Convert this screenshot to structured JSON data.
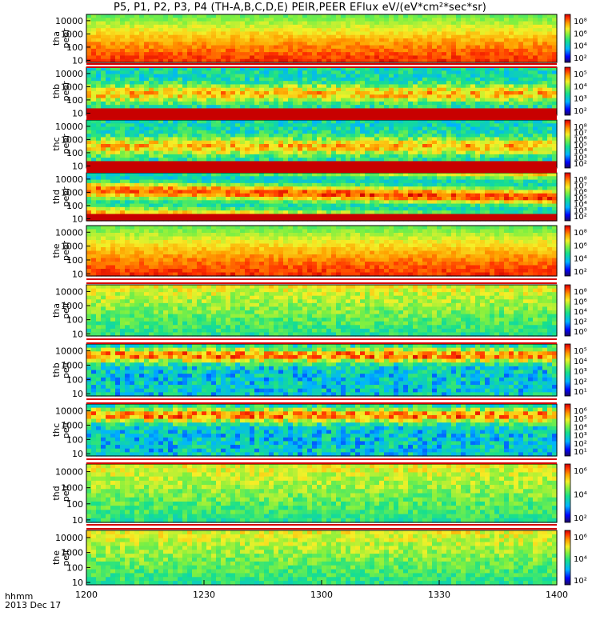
{
  "title": "P5, P1, P2, P3, P4 (TH-A,B,C,D,E) PEIR,PEER EFlux eV/(eV*cm²*sec*sr)",
  "time_axis": {
    "row_label": "hhmm",
    "date_label": "2013 Dec 17",
    "tick_labels": [
      "1200",
      "1230",
      "1300",
      "1330",
      "1400"
    ]
  },
  "chart_data": [
    {
      "type": "heatmap",
      "panel": "tha-peer",
      "ylabel_top": "tha",
      "ylabel_bottom": "peer",
      "x_range": [
        "12:00",
        "14:00"
      ],
      "ylim": [
        7,
        30000
      ],
      "y_scale": "log",
      "y_tick_labels": [
        "10000",
        "1000",
        "100",
        "10"
      ],
      "cbar_labels": [
        "10⁸",
        "10⁶",
        "10⁴",
        "10²"
      ],
      "style": "peer",
      "fill_band": null
    },
    {
      "type": "heatmap",
      "panel": "thb-peer",
      "ylabel_top": "thb",
      "ylabel_bottom": "peer",
      "x_range": [
        "12:00",
        "14:00"
      ],
      "ylim": [
        7,
        30000
      ],
      "y_scale": "log",
      "y_tick_labels": [
        "10000",
        "1000",
        "100",
        "10"
      ],
      "cbar_labels": [
        "10⁵",
        "10⁴",
        "10³",
        "10²"
      ],
      "style": "bandmix",
      "fill_band": "low"
    },
    {
      "type": "heatmap",
      "panel": "thc-peer",
      "ylabel_top": "thc",
      "ylabel_bottom": "peer",
      "x_range": [
        "12:00",
        "14:00"
      ],
      "ylim": [
        7,
        30000
      ],
      "y_scale": "log",
      "y_tick_labels": [
        "10000",
        "1000",
        "100",
        "10"
      ],
      "cbar_labels": [
        "10⁸",
        "10⁷",
        "10⁶",
        "10⁵",
        "10⁴",
        "10³",
        "10²"
      ],
      "style": "bandmix",
      "fill_band": "low"
    },
    {
      "type": "heatmap",
      "panel": "thd-peer",
      "ylabel_top": "thd",
      "ylabel_bottom": "peer",
      "x_range": [
        "12:00",
        "14:00"
      ],
      "ylim": [
        7,
        30000
      ],
      "y_scale": "log",
      "y_tick_labels": [
        "10000",
        "1000",
        "100",
        "10"
      ],
      "cbar_labels": [
        "10⁸",
        "10⁷",
        "10⁶",
        "10⁵",
        "10⁴",
        "10³",
        "10²"
      ],
      "style": "peer2",
      "fill_band": "low"
    },
    {
      "type": "heatmap",
      "panel": "the-peer",
      "ylabel_top": "the",
      "ylabel_bottom": "peer",
      "x_range": [
        "12:00",
        "14:00"
      ],
      "ylim": [
        7,
        30000
      ],
      "y_scale": "log",
      "y_tick_labels": [
        "10000",
        "1000",
        "100",
        "10"
      ],
      "cbar_labels": [
        "10⁸",
        "10⁶",
        "10⁴",
        "10²"
      ],
      "style": "peer",
      "fill_band": null
    },
    {
      "type": "heatmap",
      "panel": "tha-peir",
      "ylabel_top": "tha",
      "ylabel_bottom": "peir",
      "x_range": [
        "12:00",
        "14:00"
      ],
      "ylim": [
        7,
        30000
      ],
      "y_scale": "log",
      "y_tick_labels": [
        "10000",
        "1000",
        "100",
        "10"
      ],
      "cbar_labels": [
        "10⁸",
        "10⁶",
        "10⁴",
        "10²",
        "10⁰"
      ],
      "style": "peir",
      "fill_band": null
    },
    {
      "type": "heatmap",
      "panel": "thb-peir",
      "ylabel_top": "thb",
      "ylabel_bottom": "peir",
      "x_range": [
        "12:00",
        "14:00"
      ],
      "ylim": [
        7,
        30000
      ],
      "y_scale": "log",
      "y_tick_labels": [
        "10000",
        "1000",
        "100",
        "10"
      ],
      "cbar_labels": [
        "10⁵",
        "10⁴",
        "10³",
        "10²",
        "10¹"
      ],
      "style": "peir2",
      "fill_band": null
    },
    {
      "type": "heatmap",
      "panel": "thc-peir",
      "ylabel_top": "thc",
      "ylabel_bottom": "peir",
      "x_range": [
        "12:00",
        "14:00"
      ],
      "ylim": [
        7,
        30000
      ],
      "y_scale": "log",
      "y_tick_labels": [
        "10000",
        "1000",
        "100",
        "10"
      ],
      "cbar_labels": [
        "10⁶",
        "10⁵",
        "10⁴",
        "10³",
        "10²",
        "10¹"
      ],
      "style": "peir2",
      "fill_band": null
    },
    {
      "type": "heatmap",
      "panel": "thd-peir",
      "ylabel_top": "thd",
      "ylabel_bottom": "peir",
      "x_range": [
        "12:00",
        "14:00"
      ],
      "ylim": [
        7,
        30000
      ],
      "y_scale": "log",
      "y_tick_labels": [
        "10000",
        "1000",
        "100",
        "10"
      ],
      "cbar_labels": [
        "10⁶",
        "10⁴",
        "10²"
      ],
      "style": "peir",
      "fill_band": null
    },
    {
      "type": "heatmap",
      "panel": "the-peir",
      "ylabel_top": "the",
      "ylabel_bottom": "peir",
      "x_range": [
        "12:00",
        "14:00"
      ],
      "ylim": [
        7,
        30000
      ],
      "y_scale": "log",
      "y_tick_labels": [
        "10000",
        "1000",
        "100",
        "10"
      ],
      "cbar_labels": [
        "10⁶",
        "10⁴",
        "10²"
      ],
      "style": "peir",
      "fill_band": null
    }
  ]
}
